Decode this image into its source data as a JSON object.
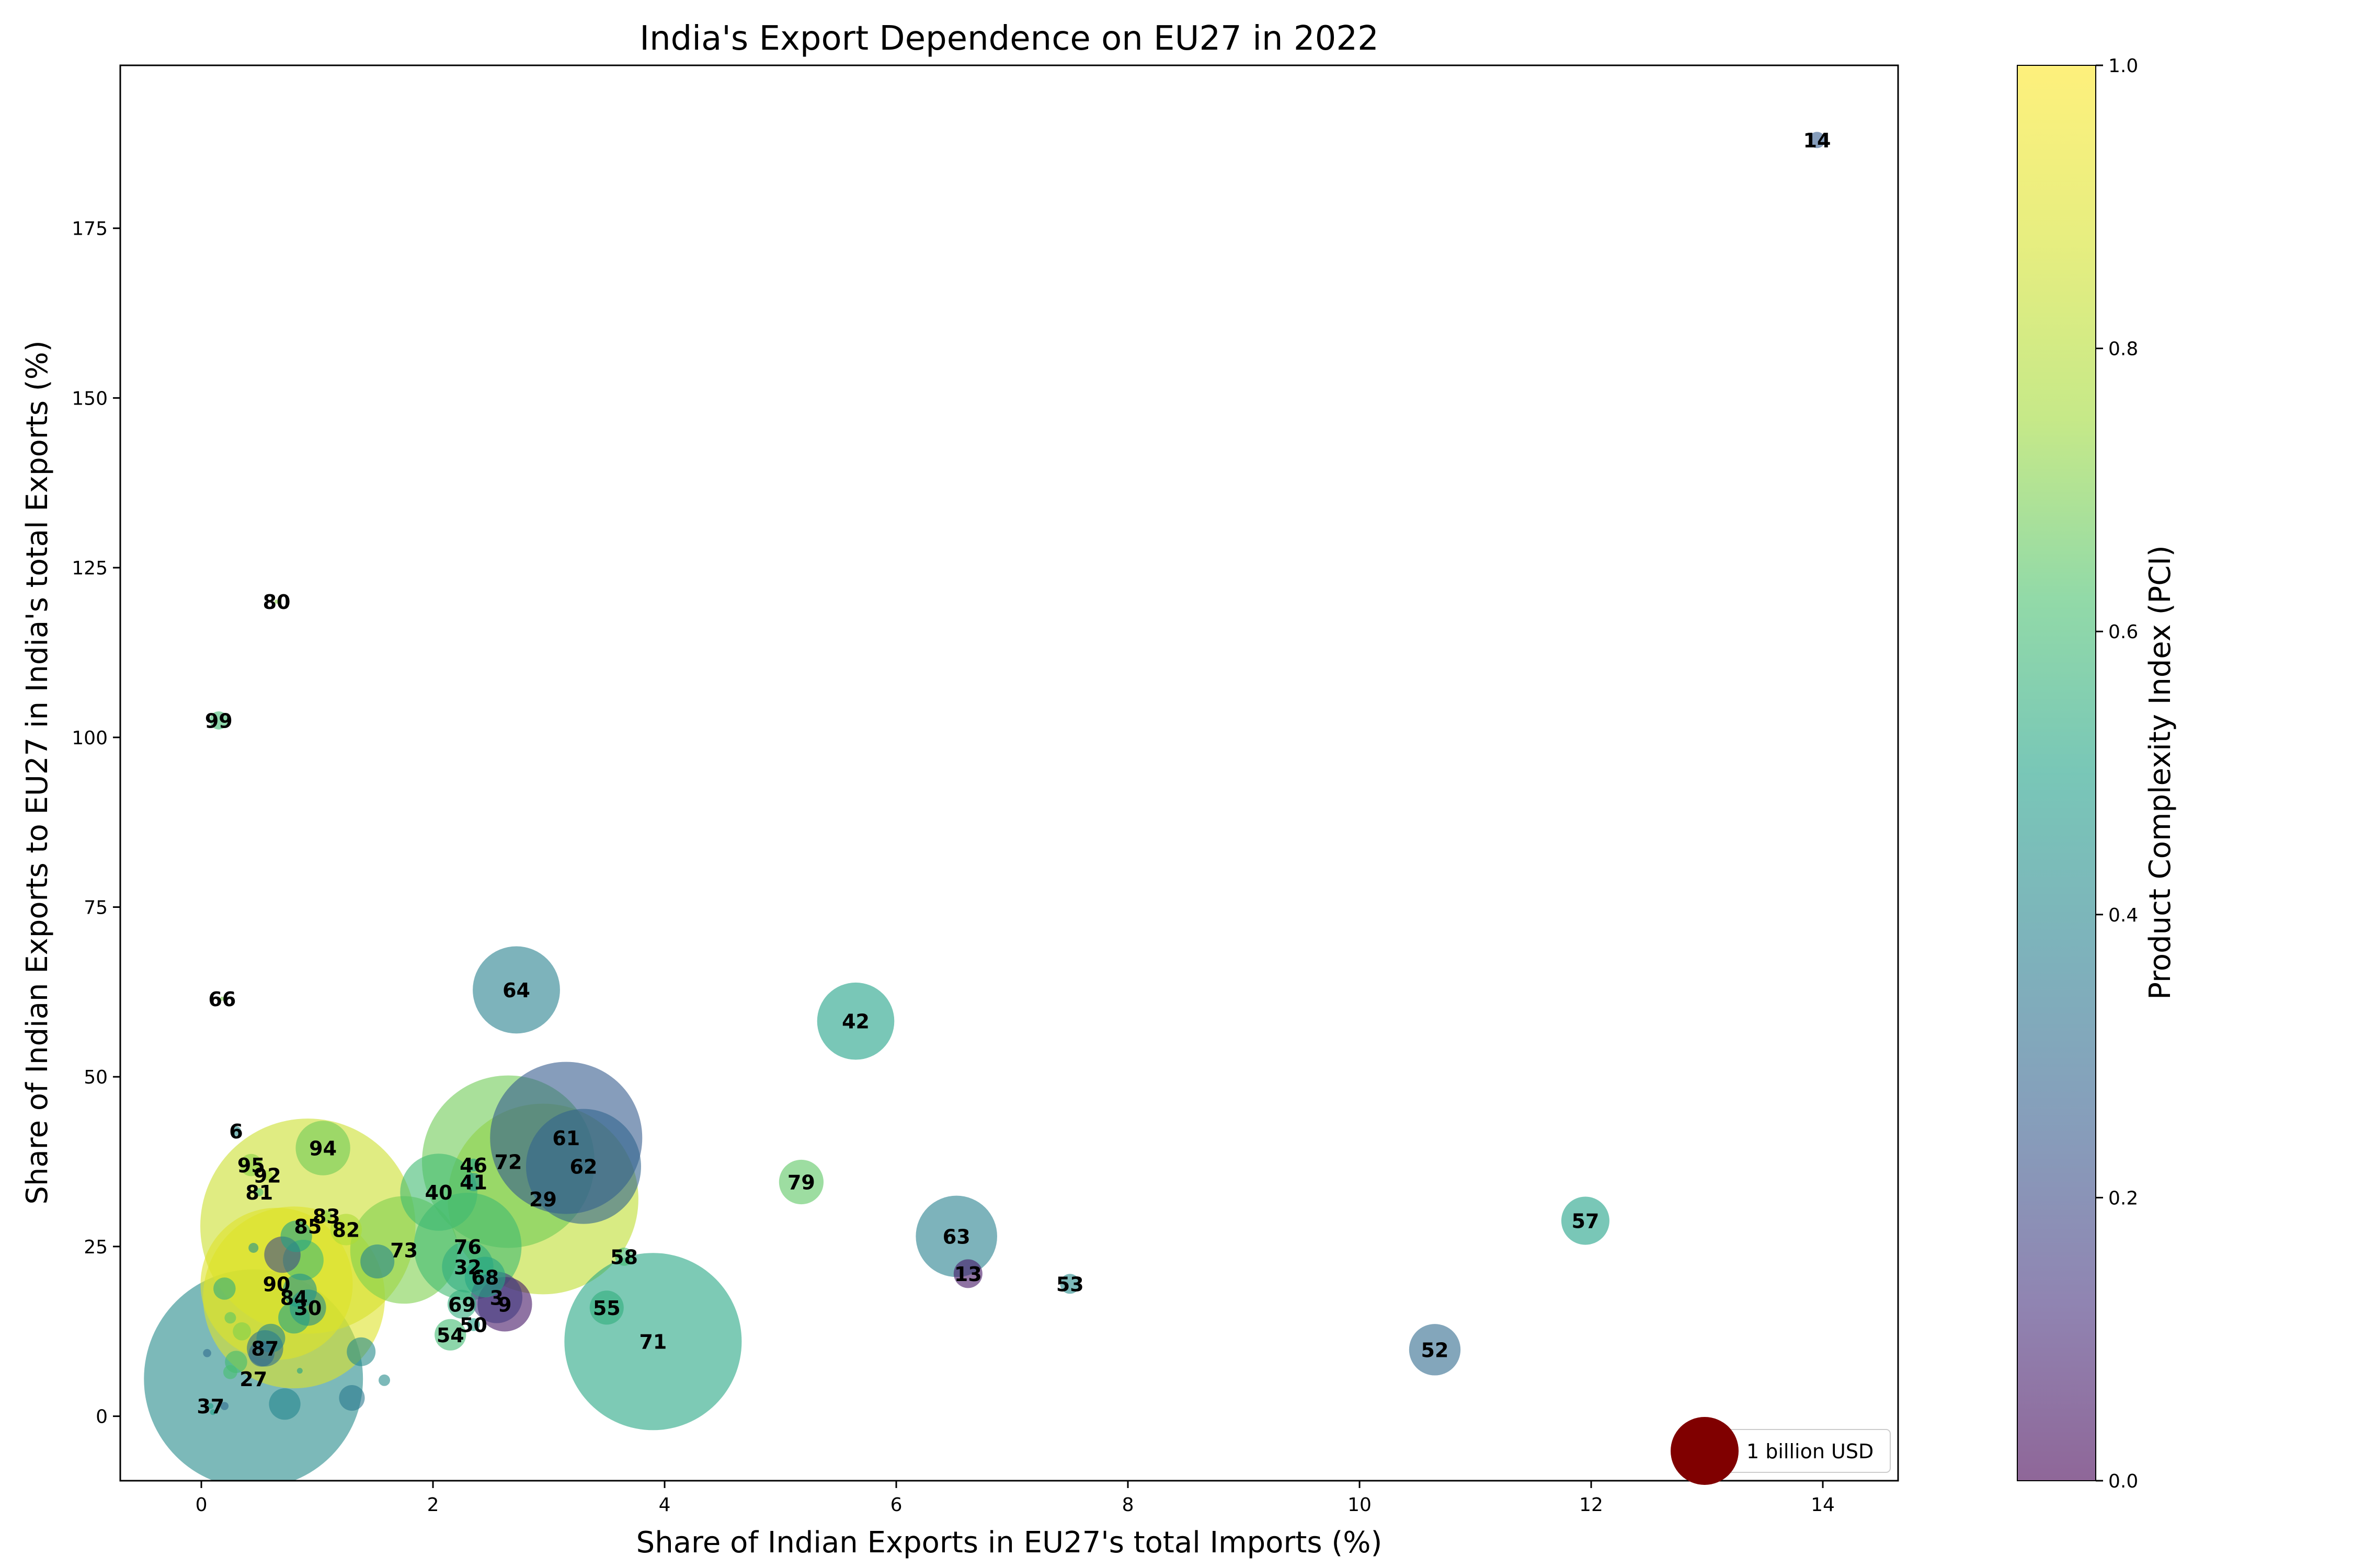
{
  "chart_data": {
    "type": "scatter",
    "title": "India's Export Dependence on EU27 in 2022",
    "xlabel": "Share of Indian Exports in EU27's total Imports (%)",
    "ylabel": "Share of Indian Exports to EU27 in India's total Exports (%)",
    "xlim": [
      -0.7,
      14.65
    ],
    "ylim": [
      -9.5,
      199
    ],
    "xticks": [
      0,
      2,
      4,
      6,
      8,
      10,
      12,
      14
    ],
    "yticks": [
      0,
      25,
      50,
      75,
      100,
      125,
      150,
      175
    ],
    "grid": false,
    "colorbar": {
      "label": "Product Complexity Index (PCI)",
      "range": [
        0,
        1
      ],
      "ticks": [
        0.0,
        0.2,
        0.4,
        0.6,
        0.8,
        1.0
      ],
      "colormap": "viridis",
      "alpha": 0.6
    },
    "legend": {
      "label": "1 billion USD",
      "marker_color": "#800000",
      "placement": "lower-right"
    },
    "points": [
      {
        "label": "14",
        "x": 13.95,
        "y": 188,
        "size": 0.08,
        "pci": 0.25
      },
      {
        "label": "80",
        "x": 0.65,
        "y": 120,
        "size": 0.001,
        "pci": 0.72
      },
      {
        "label": "99",
        "x": 0.15,
        "y": 102.5,
        "size": 0.1,
        "pci": 0.6
      },
      {
        "label": "66",
        "x": 0.18,
        "y": 61.5,
        "size": 0.001,
        "pci": 0.7
      },
      {
        "label": "64",
        "x": 2.72,
        "y": 62.8,
        "size": 2.3,
        "pci": 0.38
      },
      {
        "label": "42",
        "x": 5.65,
        "y": 58.2,
        "size": 1.8,
        "pci": 0.5
      },
      {
        "label": "6",
        "x": 0.3,
        "y": 42,
        "size": 0.03,
        "pci": 0.42
      },
      {
        "label": "94",
        "x": 1.05,
        "y": 39.5,
        "size": 0.9,
        "pci": 0.68
      },
      {
        "label": "95",
        "x": 0.43,
        "y": 37,
        "size": 0.15,
        "pci": 0.72
      },
      {
        "label": "92",
        "x": 0.57,
        "y": 35.5,
        "size": 0.03,
        "pci": 0.75
      },
      {
        "label": "81",
        "x": 0.5,
        "y": 33,
        "size": 0.02,
        "pci": 0.62
      },
      {
        "label": "83",
        "x": 1.08,
        "y": 29.5,
        "size": 0.04,
        "pci": 0.7
      },
      {
        "label": "61",
        "x": 3.15,
        "y": 41,
        "size": 7.0,
        "pci": 0.25
      },
      {
        "label": "62",
        "x": 3.3,
        "y": 36.8,
        "size": 4.0,
        "pci": 0.28
      },
      {
        "label": "72",
        "x": 2.65,
        "y": 37.5,
        "size": 9.0,
        "pci": 0.68
      },
      {
        "label": "29",
        "x": 2.95,
        "y": 32,
        "size": 11.0,
        "pci": 0.82
      },
      {
        "label": "46",
        "x": 2.35,
        "y": 37,
        "size": 0.05,
        "pci": 0.5
      },
      {
        "label": "41",
        "x": 2.35,
        "y": 34.5,
        "size": 0.1,
        "pci": 0.45
      },
      {
        "label": "40",
        "x": 2.05,
        "y": 33,
        "size": 1.8,
        "pci": 0.6
      },
      {
        "label": "79",
        "x": 5.18,
        "y": 34.5,
        "size": 0.6,
        "pci": 0.65
      },
      {
        "label": "85",
        "x": 0.92,
        "y": 28,
        "size": 14.0,
        "pci": 0.85
      },
      {
        "label": "82",
        "x": 1.25,
        "y": 27.5,
        "size": 0.3,
        "pci": 0.78
      },
      {
        "label": "57",
        "x": 11.95,
        "y": 28.8,
        "size": 0.7,
        "pci": 0.5
      },
      {
        "label": "63",
        "x": 6.52,
        "y": 26.5,
        "size": 2.0,
        "pci": 0.38
      },
      {
        "label": "73",
        "x": 1.75,
        "y": 24.5,
        "size": 3.5,
        "pci": 0.7
      },
      {
        "label": "76",
        "x": 2.3,
        "y": 25,
        "size": 3.5,
        "pci": 0.6
      },
      {
        "label": "58",
        "x": 3.65,
        "y": 23.5,
        "size": 0.1,
        "pci": 0.6
      },
      {
        "label": "32",
        "x": 2.3,
        "y": 22,
        "size": 0.8,
        "pci": 0.55
      },
      {
        "label": "68",
        "x": 2.45,
        "y": 20.5,
        "size": 0.5,
        "pci": 0.52
      },
      {
        "label": "13",
        "x": 6.62,
        "y": 21,
        "size": 0.25,
        "pci": 0.05
      },
      {
        "label": "53",
        "x": 7.5,
        "y": 19.5,
        "size": 0.12,
        "pci": 0.42
      },
      {
        "label": "90",
        "x": 0.65,
        "y": 19.5,
        "size": 7.0,
        "pci": 0.9
      },
      {
        "label": "84",
        "x": 0.8,
        "y": 17.5,
        "size": 10.0,
        "pci": 0.9
      },
      {
        "label": "3",
        "x": 2.55,
        "y": 17.5,
        "size": 0.8,
        "pci": 0.15
      },
      {
        "label": "9",
        "x": 2.62,
        "y": 16.5,
        "size": 0.9,
        "pci": 0.05
      },
      {
        "label": "30",
        "x": 0.92,
        "y": 16,
        "size": 0.4,
        "pci": 0.42
      },
      {
        "label": "69",
        "x": 2.25,
        "y": 16.5,
        "size": 0.25,
        "pci": 0.55
      },
      {
        "label": "55",
        "x": 3.5,
        "y": 16,
        "size": 0.35,
        "pci": 0.55
      },
      {
        "label": "50",
        "x": 2.35,
        "y": 13.5,
        "size": 0.05,
        "pci": 0.5
      },
      {
        "label": "54",
        "x": 2.15,
        "y": 12,
        "size": 0.3,
        "pci": 0.6
      },
      {
        "label": "71",
        "x": 3.9,
        "y": 11,
        "size": 9.5,
        "pci": 0.52
      },
      {
        "label": "52",
        "x": 10.65,
        "y": 9.8,
        "size": 0.8,
        "pci": 0.3
      },
      {
        "label": "87",
        "x": 0.55,
        "y": 10,
        "size": 0.4,
        "pci": 0.32
      },
      {
        "label": "27",
        "x": 0.45,
        "y": 5.5,
        "size": 14.5,
        "pci": 0.42
      },
      {
        "label": "37",
        "x": 0.08,
        "y": 1.5,
        "size": 0.01,
        "pci": 0.5
      }
    ],
    "unlabeled_points": [
      {
        "x": 0.2,
        "y": 18.8,
        "size": 0.15,
        "pci": 0.55
      },
      {
        "x": 0.72,
        "y": 1.8,
        "size": 0.3,
        "pci": 0.4
      },
      {
        "x": 1.3,
        "y": 2.7,
        "size": 0.2,
        "pci": 0.35
      },
      {
        "x": 1.38,
        "y": 9.5,
        "size": 0.25,
        "pci": 0.42
      },
      {
        "x": 1.58,
        "y": 5.3,
        "size": 0.04,
        "pci": 0.42
      },
      {
        "x": 1.52,
        "y": 22.8,
        "size": 0.35,
        "pci": 0.4
      },
      {
        "x": 0.88,
        "y": 23,
        "size": 0.5,
        "pci": 0.6
      },
      {
        "x": 0.82,
        "y": 26.5,
        "size": 0.3,
        "pci": 0.5
      },
      {
        "x": 0.7,
        "y": 23.8,
        "size": 0.4,
        "pci": 0.2
      },
      {
        "x": 0.45,
        "y": 24.8,
        "size": 0.03,
        "pci": 0.45
      },
      {
        "x": 0.85,
        "y": 18.5,
        "size": 0.35,
        "pci": 0.45
      },
      {
        "x": 0.8,
        "y": 14.5,
        "size": 0.3,
        "pci": 0.5
      },
      {
        "x": 0.6,
        "y": 11.5,
        "size": 0.25,
        "pci": 0.4
      },
      {
        "x": 0.52,
        "y": 9.2,
        "size": 0.2,
        "pci": 0.3
      },
      {
        "x": 0.3,
        "y": 8,
        "size": 0.15,
        "pci": 0.6
      },
      {
        "x": 0.25,
        "y": 6.5,
        "size": 0.06,
        "pci": 0.62
      },
      {
        "x": 0.2,
        "y": 1.5,
        "size": 0.02,
        "pci": 0.3
      },
      {
        "x": 0.1,
        "y": 0.6,
        "size": 0.01,
        "pci": 0.5
      },
      {
        "x": 0.05,
        "y": 9.3,
        "size": 0.02,
        "pci": 0.3
      },
      {
        "x": 0.25,
        "y": 14.5,
        "size": 0.04,
        "pci": 0.65
      },
      {
        "x": 0.85,
        "y": 6.7,
        "size": 0.01,
        "pci": 0.5
      },
      {
        "x": 0.35,
        "y": 12.5,
        "size": 0.1,
        "pci": 0.7
      }
    ]
  }
}
